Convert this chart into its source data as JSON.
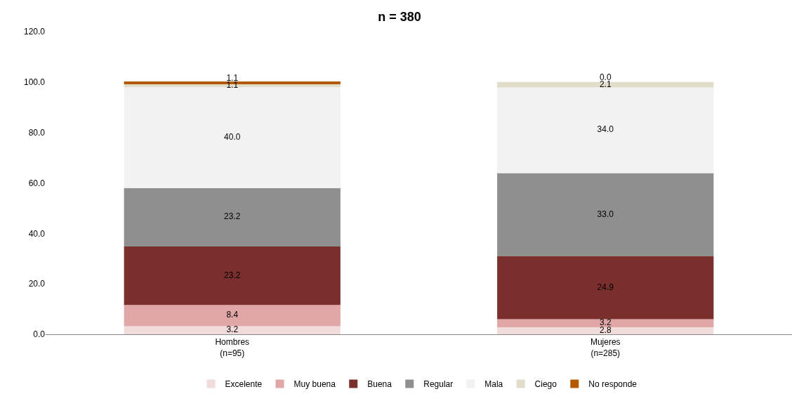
{
  "chart_data": {
    "type": "bar",
    "title": "n = 380",
    "stacked": true,
    "legend": "bottom",
    "categories": [
      "Hombres\n(n=95)",
      "Mujeres\n(n=285)"
    ],
    "ylim": [
      0,
      120
    ],
    "yticks": [
      {
        "value": 0,
        "label": "0.0"
      },
      {
        "value": 20,
        "label": "20.0"
      },
      {
        "value": 40,
        "label": "40.0"
      },
      {
        "value": 60,
        "label": "60.0"
      },
      {
        "value": 80,
        "label": "80.0"
      },
      {
        "value": 100,
        "label": "100.0"
      },
      {
        "value": 120,
        "label": "120.0"
      }
    ],
    "series": [
      {
        "name": "Excelente",
        "color": "#f2dcdb",
        "values": [
          3.2,
          2.8
        ],
        "value_labels": [
          "3.2",
          "2.8"
        ]
      },
      {
        "name": "Muy buena",
        "color": "#e0a7a6",
        "values": [
          8.4,
          3.2
        ],
        "value_labels": [
          "8.4",
          "3.2"
        ]
      },
      {
        "name": "Buena",
        "color": "#7a2f2d",
        "values": [
          23.2,
          24.9
        ],
        "value_labels": [
          "23.2",
          "24.9"
        ]
      },
      {
        "name": "Regular",
        "color": "#8f8f8f",
        "values": [
          23.2,
          33.0
        ],
        "value_labels": [
          "23.2",
          "33.0"
        ]
      },
      {
        "name": "Mala",
        "color": "#f2f2f2",
        "values": [
          40.0,
          34.0
        ],
        "value_labels": [
          "40.0",
          "34.0"
        ]
      },
      {
        "name": "Ciego",
        "color": "#e0ddcb",
        "values": [
          1.1,
          2.1
        ],
        "value_labels": [
          "1.1",
          "2.1"
        ]
      },
      {
        "name": "No responde",
        "color": "#b35900",
        "values": [
          1.1,
          0.0
        ],
        "value_labels": [
          "1.1",
          "0.0"
        ]
      }
    ]
  }
}
